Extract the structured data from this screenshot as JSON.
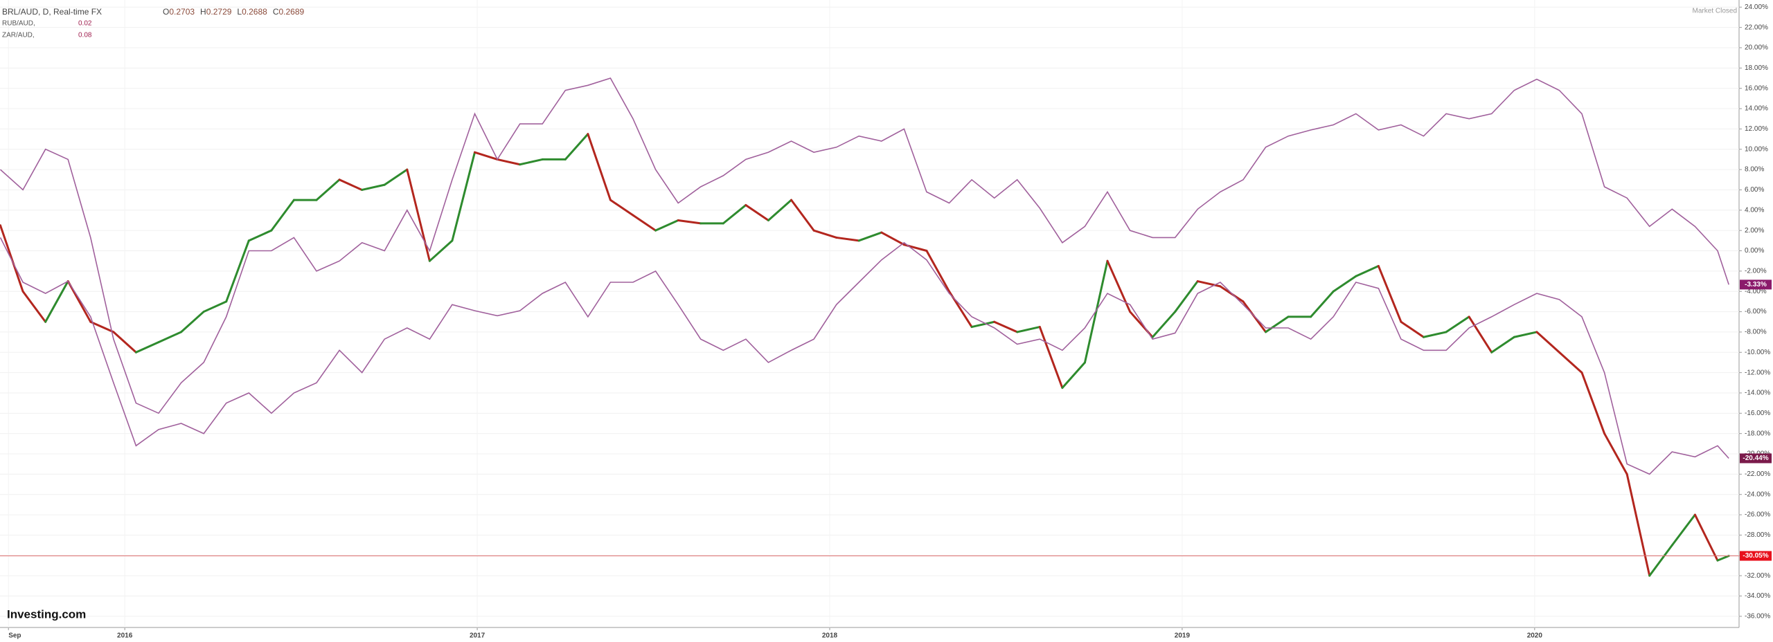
{
  "chart_data": {
    "type": "line",
    "header": {
      "ohlc": [
        {
          "label": "O",
          "value": 0.2703
        },
        {
          "label": "H",
          "value": 0.2729
        },
        {
          "label": "L",
          "value": 0.2688
        },
        {
          "label": "C",
          "value": 0.2689
        }
      ],
      "status": "Market Closed",
      "brand": "Investing.com"
    },
    "x": [
      2015.647,
      2015.711,
      2015.775,
      2015.839,
      2015.903,
      2015.968,
      2016.032,
      2016.096,
      2016.16,
      2016.224,
      2016.288,
      2016.352,
      2016.416,
      2016.48,
      2016.544,
      2016.609,
      2016.673,
      2016.737,
      2016.801,
      2016.865,
      2016.929,
      2016.993,
      2017.057,
      2017.121,
      2017.185,
      2017.25,
      2017.314,
      2017.378,
      2017.442,
      2017.506,
      2017.57,
      2017.634,
      2017.698,
      2017.762,
      2017.826,
      2017.891,
      2017.955,
      2018.019,
      2018.083,
      2018.147,
      2018.211,
      2018.275,
      2018.339,
      2018.403,
      2018.467,
      2018.532,
      2018.596,
      2018.66,
      2018.724,
      2018.788,
      2018.852,
      2018.916,
      2018.98,
      2019.044,
      2019.108,
      2019.173,
      2019.237,
      2019.301,
      2019.365,
      2019.429,
      2019.493,
      2019.557,
      2019.621,
      2019.685,
      2019.749,
      2019.814,
      2019.878,
      2019.942,
      2020.006,
      2020.07,
      2020.134,
      2020.198,
      2020.262,
      2020.326,
      2020.39,
      2020.455,
      2020.519,
      2020.551
    ],
    "series": [
      {
        "name": "BRL/AUD, D, Real-time FX",
        "up_color": "#2e8b2e",
        "down_color": "#b3261e",
        "values": [
          2.5,
          -4,
          -7,
          -3,
          -7,
          -8,
          -10,
          -9,
          -8,
          -6,
          -5,
          1,
          2,
          5,
          5,
          7,
          6,
          6.5,
          8,
          -1,
          1,
          9.7,
          9,
          8.5,
          9,
          9,
          11.5,
          5,
          3.5,
          2,
          3,
          2.7,
          2.7,
          4.5,
          3,
          5,
          2,
          1.3,
          1,
          1.8,
          0.6,
          0,
          -4,
          -7.5,
          -7,
          -8,
          -7.5,
          -13.5,
          -11,
          -1,
          -6,
          -8.5,
          -6,
          -3,
          -3.5,
          -5,
          -8,
          -6.5,
          -6.5,
          -4,
          -2.5,
          -1.5,
          -7,
          -8.5,
          -8,
          -6.5,
          -10,
          -8.5,
          -8,
          -10,
          -12,
          -18,
          -22,
          -32,
          -29,
          -26,
          -30.5,
          -30.05
        ],
        "current": {
          "value": -30.05,
          "label": "-30.05%"
        },
        "label_color": "#e8101c"
      },
      {
        "name": "RUB/AUD,",
        "legend_value": 0.02,
        "color": "#a0609c",
        "values": [
          1.3,
          -3.1,
          -4.2,
          -3,
          -6.5,
          -13,
          -19.2,
          -17.6,
          -17,
          -18,
          -15,
          -14,
          -16,
          -14,
          -13,
          -9.8,
          -12,
          -8.7,
          -7.6,
          -8.7,
          -5.3,
          -5.9,
          -6.4,
          -5.9,
          -4.2,
          -3.1,
          -6.5,
          -3.1,
          -3.1,
          -2,
          -5.3,
          -8.7,
          -9.8,
          -8.7,
          -11,
          -9.8,
          -8.7,
          -5.3,
          -3.1,
          -0.9,
          0.8,
          -0.9,
          -4.2,
          -6.5,
          -7.6,
          -9.2,
          -8.7,
          -9.8,
          -7.6,
          -4.2,
          -5.3,
          -8.7,
          -8.1,
          -4.2,
          -3.1,
          -5.3,
          -7.6,
          -7.6,
          -8.7,
          -6.5,
          -3.1,
          -3.7,
          -8.7,
          -9.8,
          -9.8,
          -7.6,
          -6.5,
          -5.3,
          -4.2,
          -4.8,
          -6.5,
          -12,
          -21,
          -22,
          -19.8,
          -20.3,
          -19.2,
          -20.44
        ],
        "current": {
          "value": -20.44,
          "label": "-20.44%"
        },
        "label_color": "#7a1a4a"
      },
      {
        "name": "ZAR/AUD,",
        "legend_value": 0.08,
        "color": "#a0609c",
        "values": [
          8,
          6,
          10,
          9,
          1.3,
          -8.7,
          -15,
          -16,
          -13,
          -11,
          -6.5,
          0,
          0,
          1.3,
          -2,
          -1,
          0.8,
          0,
          4,
          0,
          7,
          13.5,
          9,
          12.5,
          12.5,
          15.8,
          16.3,
          17,
          13,
          8,
          4.7,
          6.3,
          7.4,
          9,
          9.7,
          10.8,
          9.7,
          10.2,
          11.3,
          10.8,
          12,
          5.8,
          4.7,
          7,
          5.2,
          7,
          4.2,
          0.8,
          2.4,
          5.8,
          2,
          1.3,
          1.3,
          4.1,
          5.8,
          7,
          10.2,
          11.3,
          11.9,
          12.4,
          13.5,
          11.9,
          12.4,
          11.3,
          13.5,
          13,
          13.5,
          15.8,
          16.9,
          15.8,
          13.5,
          6.3,
          5.2,
          2.4,
          4.1,
          2.4,
          0,
          -3.33
        ],
        "current": {
          "value": -3.33,
          "label": "-3.33%"
        },
        "label_color": "#8b1a6b"
      }
    ],
    "xlim": [
      2015.646,
      2020.58
    ],
    "xticks": [
      {
        "value": 2015.67,
        "label": "Sep"
      },
      2016,
      2017,
      2018,
      2019,
      2020
    ],
    "ylim": [
      -37.1,
      24.7
    ],
    "yticks": [
      {
        "value": 24,
        "label": "24.00%"
      },
      {
        "value": 22,
        "label": "22.00%"
      },
      {
        "value": 20,
        "label": "20.00%"
      },
      {
        "value": 18,
        "label": "18.00%"
      },
      {
        "value": 16,
        "label": "16.00%"
      },
      {
        "value": 14,
        "label": "14.00%"
      },
      {
        "value": 12,
        "label": "12.00%"
      },
      {
        "value": 10,
        "label": "10.00%"
      },
      {
        "value": 8,
        "label": "8.00%"
      },
      {
        "value": 6,
        "label": "6.00%"
      },
      {
        "value": 4,
        "label": "4.00%"
      },
      {
        "value": 2,
        "label": "2.00%"
      },
      {
        "value": 0,
        "label": "0.00%"
      },
      {
        "value": -2,
        "label": "-2.00%"
      },
      {
        "value": -4,
        "label": "-4.00%"
      },
      {
        "value": -6,
        "label": "-6.00%"
      },
      {
        "value": -8,
        "label": "-8.00%"
      },
      {
        "value": -10,
        "label": "-10.00%"
      },
      {
        "value": -12,
        "label": "-12.00%"
      },
      {
        "value": -14,
        "label": "-14.00%"
      },
      {
        "value": -16,
        "label": "-16.00%"
      },
      {
        "value": -18,
        "label": "-18.00%"
      },
      {
        "value": -20,
        "label": "-20.00%"
      },
      {
        "value": -22,
        "label": "-22.00%"
      },
      {
        "value": -24,
        "label": "-24.00%"
      },
      {
        "value": -26,
        "label": "-26.00%"
      },
      {
        "value": -28,
        "label": "-28.00%"
      },
      {
        "value": -30,
        "label": "-30.00%"
      },
      {
        "value": -32,
        "label": "-32.00%"
      },
      {
        "value": -34,
        "label": "-34.00%"
      },
      {
        "value": -36,
        "label": "-36.00%"
      }
    ],
    "grid": true
  }
}
